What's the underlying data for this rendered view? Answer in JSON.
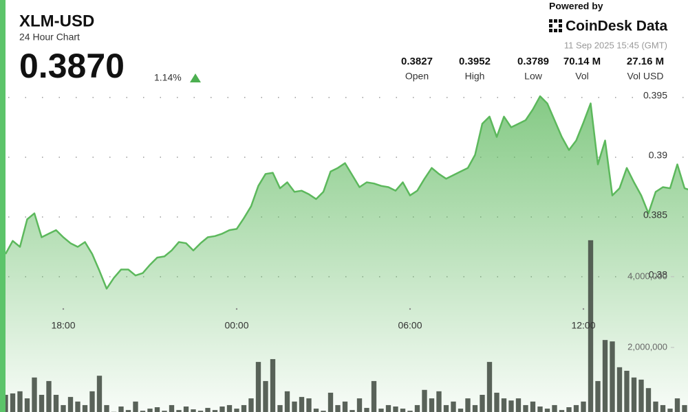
{
  "header": {
    "symbol": "XLM-USD",
    "subtitle": "24 Hour Chart",
    "price": "0.3870",
    "change": "1.14%"
  },
  "branding": {
    "powered_by": "Powered by",
    "brand": "CoinDesk Data",
    "timestamp": "11 Sep 2025 15:45 (GMT)"
  },
  "stats": [
    {
      "value": "0.3827",
      "label": "Open"
    },
    {
      "value": "0.3952",
      "label": "High"
    },
    {
      "value": "0.3789",
      "label": "Low"
    },
    {
      "value": "70.14 M",
      "label": "Vol"
    },
    {
      "value": "27.16 M",
      "label": "Vol USD"
    }
  ],
  "chart_data": {
    "type": "line",
    "xlim": [
      0,
      95
    ],
    "xticks": [
      {
        "value": 8,
        "label": "18:00"
      },
      {
        "value": 32,
        "label": "00:00"
      },
      {
        "value": 56,
        "label": "06:00"
      },
      {
        "value": 80,
        "label": "12:00"
      }
    ],
    "ylim": [
      0.36816,
      0.39741
    ],
    "yticks": [
      0.38,
      0.385,
      0.39,
      0.395
    ],
    "y2lim": [
      0,
      9880000
    ],
    "y2ticks": [
      {
        "value": 2000000,
        "label": "2,000,000"
      },
      {
        "value": 4000000,
        "label": "4,000,000"
      }
    ],
    "grid": true,
    "series": [
      {
        "name": "Price",
        "color": "#5cb85c",
        "values": [
          0.3819,
          0.383,
          0.3825,
          0.3848,
          0.3853,
          0.3833,
          0.3836,
          0.3839,
          0.3833,
          0.3828,
          0.3825,
          0.3829,
          0.3819,
          0.3805,
          0.379,
          0.3799,
          0.3806,
          0.3806,
          0.3801,
          0.3803,
          0.381,
          0.3816,
          0.3817,
          0.3822,
          0.3829,
          0.3828,
          0.3822,
          0.3828,
          0.3833,
          0.3834,
          0.3836,
          0.3839,
          0.384,
          0.3849,
          0.3859,
          0.3876,
          0.3886,
          0.3887,
          0.3874,
          0.3879,
          0.3871,
          0.3872,
          0.3869,
          0.3865,
          0.3871,
          0.3888,
          0.3891,
          0.3895,
          0.3885,
          0.3875,
          0.3879,
          0.3878,
          0.3876,
          0.3875,
          0.3872,
          0.3879,
          0.3868,
          0.3872,
          0.3882,
          0.3891,
          0.3886,
          0.3882,
          0.3885,
          0.3888,
          0.3891,
          0.3902,
          0.3928,
          0.3934,
          0.3917,
          0.3934,
          0.3925,
          0.3928,
          0.3931,
          0.394,
          0.3951,
          0.3945,
          0.3931,
          0.3917,
          0.3906,
          0.3914,
          0.3929,
          0.3945,
          0.3894,
          0.3914,
          0.3868,
          0.3874,
          0.3891,
          0.3879,
          0.3868,
          0.3853,
          0.3871,
          0.3875,
          0.3874,
          0.3894,
          0.3874,
          0.3872
        ]
      },
      {
        "name": "Volume",
        "color": "#4b554b",
        "axis": "y2",
        "values": [
          660000,
          700000,
          760000,
          560000,
          1150000,
          660000,
          1050000,
          660000,
          370000,
          600000,
          470000,
          370000,
          760000,
          1200000,
          370000,
          180000,
          330000,
          230000,
          470000,
          210000,
          270000,
          310000,
          210000,
          370000,
          230000,
          330000,
          250000,
          210000,
          290000,
          230000,
          330000,
          370000,
          270000,
          370000,
          560000,
          1590000,
          1050000,
          1670000,
          370000,
          760000,
          470000,
          600000,
          560000,
          270000,
          210000,
          720000,
          370000,
          470000,
          230000,
          560000,
          290000,
          1050000,
          270000,
          370000,
          330000,
          270000,
          210000,
          370000,
          800000,
          560000,
          760000,
          370000,
          470000,
          270000,
          560000,
          370000,
          660000,
          1590000,
          720000,
          560000,
          500000,
          560000,
          370000,
          470000,
          330000,
          270000,
          370000,
          230000,
          310000,
          370000,
          470000,
          5030000,
          1050000,
          2210000,
          2170000,
          1440000,
          1340000,
          1150000,
          1090000,
          850000,
          470000,
          370000,
          270000,
          560000,
          370000,
          270000
        ]
      }
    ]
  }
}
